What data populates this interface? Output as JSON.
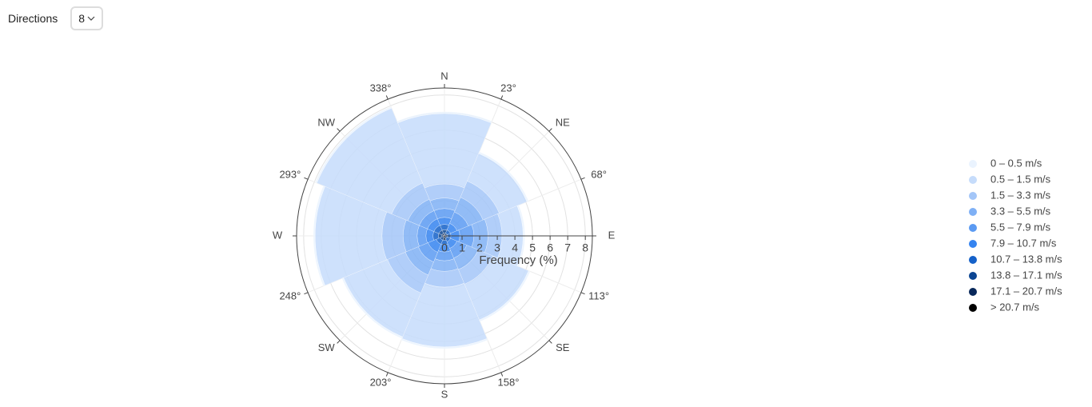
{
  "controls": {
    "label": "Directions",
    "value": "8"
  },
  "chart_data": {
    "type": "barpolar",
    "axis_title": "Frequency (%)",
    "theta": [
      0,
      45,
      90,
      135,
      180,
      225,
      270,
      315
    ],
    "rlim": [
      0,
      8.4
    ],
    "rticks": [
      0,
      1,
      2,
      3,
      4,
      5,
      6,
      7,
      8
    ],
    "angular_ticks": [
      {
        "value": 0,
        "label": "N"
      },
      {
        "value": 22.5,
        "label": "23°"
      },
      {
        "value": 45,
        "label": "NE"
      },
      {
        "value": 67.5,
        "label": "68°"
      },
      {
        "value": 90,
        "label": "E"
      },
      {
        "value": 112.5,
        "label": "113°"
      },
      {
        "value": 135,
        "label": "SE"
      },
      {
        "value": 157.5,
        "label": "158°"
      },
      {
        "value": 180,
        "label": "S"
      },
      {
        "value": 202.5,
        "label": "203°"
      },
      {
        "value": 225,
        "label": "SW"
      },
      {
        "value": 247.5,
        "label": "248°"
      },
      {
        "value": 270,
        "label": "W"
      },
      {
        "value": 292.5,
        "label": "293°"
      },
      {
        "value": 315,
        "label": "NW"
      },
      {
        "value": 337.5,
        "label": "338°"
      }
    ],
    "grid": true,
    "legend": "right",
    "series": [
      {
        "name": "0 – 0.5 m/s",
        "color": "#eaf3fe",
        "values": [
          0.1,
          0.1,
          0.1,
          0.1,
          0.1,
          0.1,
          0.1,
          0.1
        ]
      },
      {
        "name": "0.5 – 1.5 m/s",
        "color": "#c6dcfb",
        "values": [
          4.0,
          1.7,
          1.2,
          2.2,
          3.4,
          2.7,
          3.8,
          4.6
        ]
      },
      {
        "name": "1.5 – 3.3 m/s",
        "color": "#a3c6f8",
        "values": [
          0.8,
          1.0,
          0.8,
          0.9,
          0.9,
          1.1,
          1.2,
          1.0
        ]
      },
      {
        "name": "3.3 – 5.5 m/s",
        "color": "#7fb0f5",
        "values": [
          0.6,
          0.9,
          0.8,
          0.7,
          0.6,
          0.8,
          0.8,
          0.7
        ]
      },
      {
        "name": "5.5 – 7.9 m/s",
        "color": "#5b9af2",
        "values": [
          0.5,
          0.7,
          0.8,
          0.6,
          0.5,
          0.6,
          0.5,
          0.5
        ]
      },
      {
        "name": "7.9 – 10.7 m/s",
        "color": "#3584f0",
        "values": [
          0.4,
          0.4,
          0.5,
          0.4,
          0.4,
          0.5,
          0.4,
          0.4
        ]
      },
      {
        "name": "10.7 – 13.8 m/s",
        "color": "#1561c9",
        "values": [
          0.3,
          0.2,
          0.2,
          0.2,
          0.25,
          0.25,
          0.3,
          0.3
        ]
      },
      {
        "name": "13.8 – 17.1 m/s",
        "color": "#0c4592",
        "values": [
          0.2,
          0.1,
          0.1,
          0.1,
          0.15,
          0.15,
          0.2,
          0.2
        ]
      },
      {
        "name": "17.1 – 20.7 m/s",
        "color": "#08285a",
        "values": [
          0.1,
          0.05,
          0.05,
          0.05,
          0.08,
          0.08,
          0.1,
          0.1
        ]
      },
      {
        "name": "> 20.7 m/s",
        "color": "#000000",
        "values": [
          0.05,
          0.02,
          0.02,
          0.02,
          0.03,
          0.03,
          0.05,
          0.05
        ]
      }
    ]
  }
}
